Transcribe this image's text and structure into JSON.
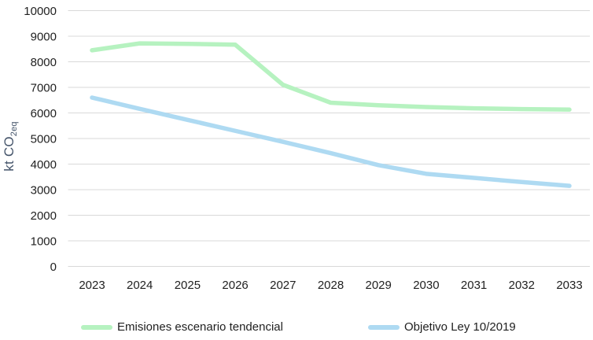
{
  "chart_data": {
    "type": "line",
    "title": "",
    "ylabel": "kt CO2eq",
    "ylabel_main": "kt CO",
    "ylabel_sub": "2eq",
    "x_categories": [
      "2023",
      "2024",
      "2025",
      "2026",
      "2027",
      "2028",
      "2029",
      "2030",
      "2031",
      "2032",
      "2033"
    ],
    "series": [
      {
        "name": "Emisiones escenario tendencial",
        "color": "#b6f2c0",
        "values": [
          8450,
          8720,
          8700,
          8670,
          7100,
          6400,
          6300,
          6230,
          6180,
          6150,
          6130
        ]
      },
      {
        "name": "Objetivo Ley 10/2019",
        "color": "#aedaf2",
        "values": [
          6600,
          6160,
          5730,
          5300,
          4870,
          4430,
          3960,
          3620,
          3460,
          3300,
          3150
        ]
      }
    ],
    "ylim": [
      0,
      10000
    ],
    "ytick_step": 1000,
    "grid": true,
    "legend_position": "bottom"
  },
  "styles": {
    "background": "#ffffff",
    "grid_color": "#d9d9d9",
    "tick_label_color": "#1f1f1f",
    "axis_title_color": "#44546a"
  }
}
